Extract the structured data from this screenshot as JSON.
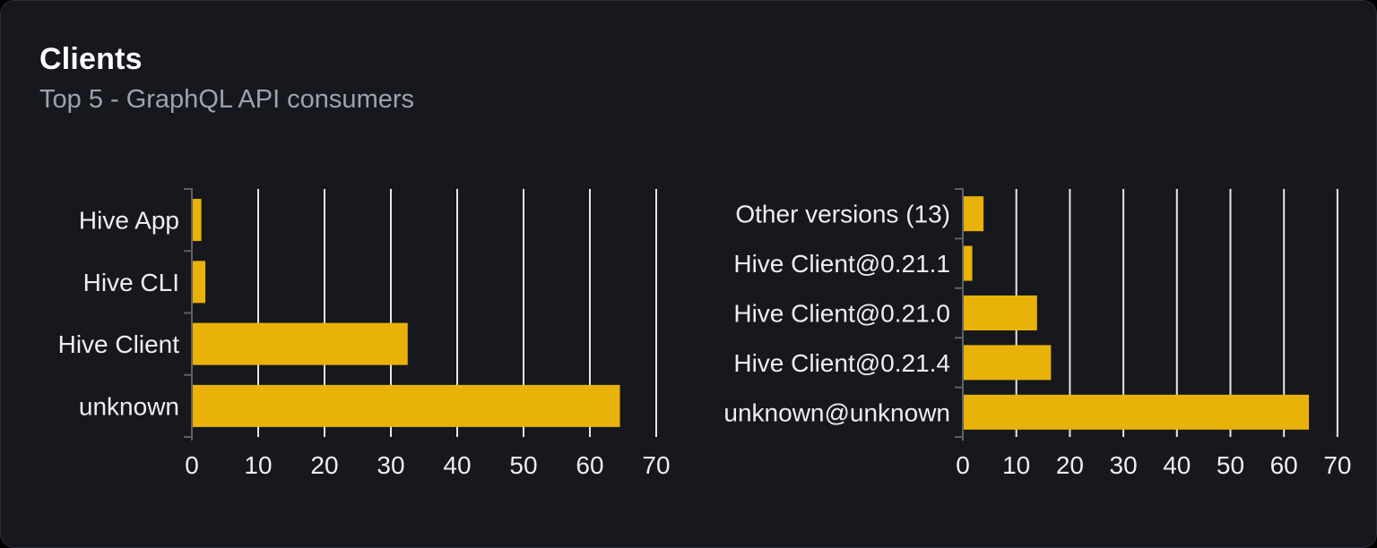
{
  "card": {
    "title": "Clients",
    "subtitle": "Top 5 - GraphQL API consumers"
  },
  "colors": {
    "page_bg": "#000000",
    "card_bg": "#16181d",
    "card_border": "#2a2d34",
    "bar": "#e9b208",
    "gridline": "#e4e7ec",
    "axis": "#5d6068",
    "label_text": "#eeeef0",
    "title_text": "#ffffff",
    "subtitle_text": "#9ca3af"
  },
  "chart_data": [
    {
      "type": "bar",
      "name": "clients",
      "orientation": "horizontal",
      "categories": [
        "Hive App",
        "Hive CLI",
        "Hive Client",
        "unknown"
      ],
      "values": [
        1.3,
        1.9,
        32.4,
        64.4
      ],
      "xticks": [
        0,
        10,
        20,
        30,
        40,
        50,
        60,
        70
      ],
      "xlim": [
        0,
        70
      ],
      "grid": true,
      "legend": false,
      "title": "",
      "xlabel": "",
      "ylabel": ""
    },
    {
      "type": "bar",
      "name": "client-versions",
      "orientation": "horizontal",
      "categories": [
        "Other versions (13)",
        "Hive Client@0.21.1",
        "Hive Client@0.21.0",
        "Hive Client@0.21.4",
        "unknown@unknown"
      ],
      "values": [
        3.7,
        1.6,
        13.7,
        16.3,
        64.5
      ],
      "xticks": [
        0,
        10,
        20,
        30,
        40,
        50,
        60,
        70
      ],
      "xlim": [
        0,
        70
      ],
      "grid": true,
      "legend": false,
      "title": "",
      "xlabel": "",
      "ylabel": ""
    }
  ]
}
